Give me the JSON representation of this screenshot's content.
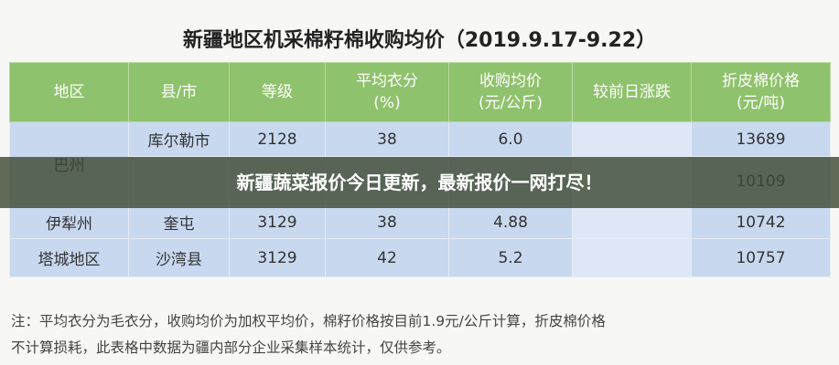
{
  "title": "新疆地区机采棉籽棉收购均价（2019.9.17-9.22）",
  "table": {
    "header": [
      [
        "地区"
      ],
      [
        "县/市"
      ],
      [
        "等级"
      ],
      [
        "平均衣分",
        "(%)"
      ],
      [
        "收购均价",
        "(元/公斤)"
      ],
      [
        "较前日涨跌"
      ],
      [
        "折皮棉价格",
        "(元/吨)"
      ]
    ],
    "rows": [
      [
        "巴州",
        "库尔勒市",
        "2128",
        "38",
        "6.0",
        null,
        "13689"
      ],
      [
        null,
        null,
        null,
        null,
        null,
        null,
        "10109"
      ],
      [
        "伊犁州",
        "奎屯",
        "3129",
        "38",
        "4.88",
        null,
        "10742"
      ],
      [
        "塔城地区",
        "沙湾县",
        "3129",
        "42",
        "5.2",
        null,
        "10757"
      ]
    ]
  },
  "note": [
    "注：平均衣分为毛衣分，收购均价为加权平均价，棉籽价格按目前1.9元/公斤计算，折皮棉价格",
    "不计算损耗，此表格中数据为疆内部分企业采集样本统计，仅供参考。"
  ],
  "banner": "新疆蔬菜报价今日更新，最新报价一网打尽！"
}
